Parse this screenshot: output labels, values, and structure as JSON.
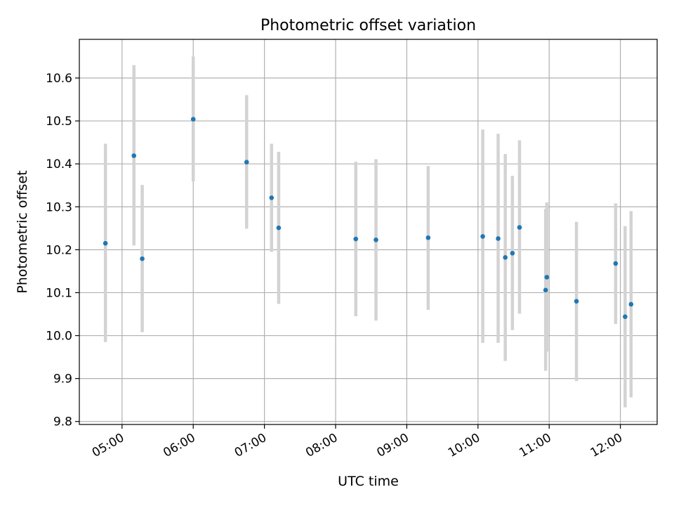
{
  "chart_data": {
    "type": "scatter",
    "title": "Photometric offset variation",
    "xlabel": "UTC time",
    "ylabel": "Photometric offset",
    "x_unit": "UTC time of day",
    "xlim": [
      "04:24",
      "12:31"
    ],
    "ylim": [
      9.793,
      10.69
    ],
    "x_ticks": [
      "05:00",
      "06:00",
      "07:00",
      "08:00",
      "09:00",
      "10:00",
      "11:00",
      "12:00"
    ],
    "y_ticks": [
      "9.8",
      "9.9",
      "10.0",
      "10.1",
      "10.2",
      "10.3",
      "10.4",
      "10.5",
      "10.6"
    ],
    "grid": true,
    "legend": "none",
    "colors": {
      "points": "#1f77b4",
      "errorbars": "#d3d3d3",
      "grid": "#b0b0b0",
      "axes": "#000000"
    },
    "series": [
      {
        "points": [
          {
            "x": "04:46",
            "y": 10.215,
            "y_low": 9.985,
            "y_high": 10.447
          },
          {
            "x": "05:10",
            "y": 10.419,
            "y_low": 10.21,
            "y_high": 10.63
          },
          {
            "x": "05:17",
            "y": 10.179,
            "y_low": 10.008,
            "y_high": 10.351
          },
          {
            "x": "06:00",
            "y": 10.504,
            "y_low": 10.359,
            "y_high": 10.65
          },
          {
            "x": "06:45",
            "y": 10.404,
            "y_low": 10.249,
            "y_high": 10.56
          },
          {
            "x": "07:06",
            "y": 10.321,
            "y_low": 10.195,
            "y_high": 10.447
          },
          {
            "x": "07:12",
            "y": 10.251,
            "y_low": 10.074,
            "y_high": 10.428
          },
          {
            "x": "08:17",
            "y": 10.225,
            "y_low": 10.045,
            "y_high": 10.405
          },
          {
            "x": "08:34",
            "y": 10.223,
            "y_low": 10.035,
            "y_high": 10.411
          },
          {
            "x": "09:18",
            "y": 10.228,
            "y_low": 10.06,
            "y_high": 10.395
          },
          {
            "x": "10:04",
            "y": 10.231,
            "y_low": 9.983,
            "y_high": 10.48
          },
          {
            "x": "10:17",
            "y": 10.226,
            "y_low": 9.983,
            "y_high": 10.47
          },
          {
            "x": "10:23",
            "y": 10.182,
            "y_low": 9.941,
            "y_high": 10.423
          },
          {
            "x": "10:29",
            "y": 10.192,
            "y_low": 10.013,
            "y_high": 10.372
          },
          {
            "x": "10:35",
            "y": 10.252,
            "y_low": 10.051,
            "y_high": 10.455
          },
          {
            "x": "10:57",
            "y": 10.106,
            "y_low": 9.918,
            "y_high": 10.295
          },
          {
            "x": "10:58",
            "y": 10.136,
            "y_low": 9.963,
            "y_high": 10.31
          },
          {
            "x": "11:23",
            "y": 10.08,
            "y_low": 9.894,
            "y_high": 10.265
          },
          {
            "x": "11:56",
            "y": 10.168,
            "y_low": 10.027,
            "y_high": 10.308
          },
          {
            "x": "12:04",
            "y": 10.044,
            "y_low": 9.833,
            "y_high": 10.255
          },
          {
            "x": "12:09",
            "y": 10.073,
            "y_low": 9.856,
            "y_high": 10.29
          }
        ]
      }
    ]
  }
}
